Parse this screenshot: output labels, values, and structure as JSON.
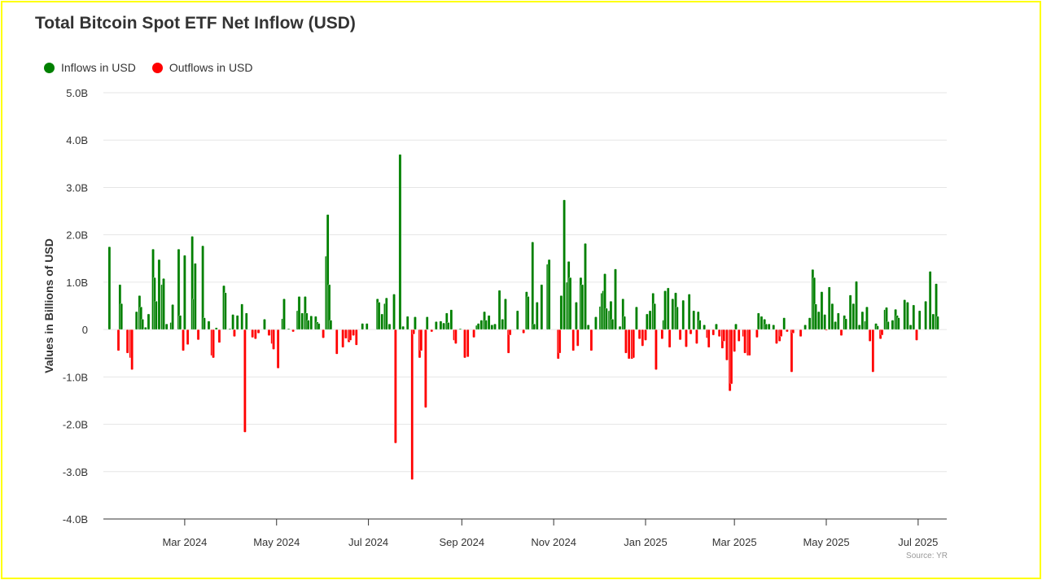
{
  "chart_data": {
    "type": "bar",
    "title": "Total Bitcoin Spot ETF Net Inflow (USD)",
    "xlabel": "",
    "ylabel": "Values in Billions of USD",
    "ylim": [
      -4,
      5
    ],
    "yticks": [
      5,
      4,
      3,
      2,
      1,
      0,
      -1,
      -2,
      -3,
      -4
    ],
    "ytick_labels": [
      "5.0B",
      "4.0B",
      "3.0B",
      "2.0B",
      "1.0B",
      "0",
      "-1.0B",
      "-2.0B",
      "-3.0B",
      "-4.0B"
    ],
    "x_start_date": "2024-01-11",
    "xlim_days": [
      -4,
      556
    ],
    "xticks": [
      {
        "date": "2024-03-01",
        "label": "Mar 2024"
      },
      {
        "date": "2024-05-01",
        "label": "May 2024"
      },
      {
        "date": "2024-07-01",
        "label": "Jul 2024"
      },
      {
        "date": "2024-09-01",
        "label": "Sep 2024"
      },
      {
        "date": "2024-11-01",
        "label": "Nov 2024"
      },
      {
        "date": "2025-01-01",
        "label": "Jan 2025"
      },
      {
        "date": "2025-03-01",
        "label": "Mar 2025"
      },
      {
        "date": "2025-05-01",
        "label": "May 2025"
      },
      {
        "date": "2025-07-01",
        "label": "Jul 2025"
      }
    ],
    "grid": true,
    "legend_position": "top-left",
    "series": [
      {
        "name": "Inflows in USD",
        "color": "#008000"
      },
      {
        "name": "Outflows in USD",
        "color": "#ff0000"
      }
    ],
    "points_days_since_start_value_billions": [
      [
        0,
        1.75
      ],
      [
        6,
        -0.45
      ],
      [
        7,
        0.95
      ],
      [
        8,
        0.55
      ],
      [
        12,
        -0.5
      ],
      [
        14,
        -0.6
      ],
      [
        15,
        -0.85
      ],
      [
        18,
        0.38
      ],
      [
        20,
        0.72
      ],
      [
        21,
        0.48
      ],
      [
        22,
        0.22
      ],
      [
        24,
        0.05
      ],
      [
        26,
        0.33
      ],
      [
        29,
        1.7
      ],
      [
        30,
        1.1
      ],
      [
        31,
        0.6
      ],
      [
        33,
        1.48
      ],
      [
        35,
        0.95
      ],
      [
        36,
        1.08
      ],
      [
        38,
        0.12
      ],
      [
        41,
        0.15
      ],
      [
        42,
        0.53
      ],
      [
        46,
        1.7
      ],
      [
        47,
        0.3
      ],
      [
        49,
        -0.45
      ],
      [
        50,
        1.57
      ],
      [
        52,
        -0.32
      ],
      [
        55,
        1.97
      ],
      [
        56,
        0.65
      ],
      [
        57,
        1.4
      ],
      [
        59,
        -0.22
      ],
      [
        62,
        1.77
      ],
      [
        63,
        0.25
      ],
      [
        66,
        0.18
      ],
      [
        68,
        -0.55
      ],
      [
        69,
        -0.6
      ],
      [
        71,
        0.04
      ],
      [
        73,
        -0.28
      ],
      [
        76,
        0.93
      ],
      [
        77,
        0.78
      ],
      [
        80,
        0.02
      ],
      [
        82,
        0.32
      ],
      [
        83,
        -0.15
      ],
      [
        85,
        0.3
      ],
      [
        88,
        0.54
      ],
      [
        90,
        -2.17
      ],
      [
        91,
        0.35
      ],
      [
        95,
        -0.17
      ],
      [
        97,
        -0.2
      ],
      [
        99,
        -0.08
      ],
      [
        103,
        0.22
      ],
      [
        106,
        -0.13
      ],
      [
        108,
        -0.3
      ],
      [
        109,
        -0.42
      ],
      [
        112,
        -0.82
      ],
      [
        115,
        0.23
      ],
      [
        116,
        0.65
      ],
      [
        119,
        0.02
      ],
      [
        122,
        -0.05
      ],
      [
        125,
        0.4
      ],
      [
        126,
        0.7
      ],
      [
        128,
        0.35
      ],
      [
        130,
        0.7
      ],
      [
        131,
        0.35
      ],
      [
        132,
        0.2
      ],
      [
        134,
        0.29
      ],
      [
        137,
        0.28
      ],
      [
        138,
        0.16
      ],
      [
        139,
        0.13
      ],
      [
        142,
        -0.18
      ],
      [
        144,
        1.55
      ],
      [
        145,
        2.43
      ],
      [
        146,
        0.95
      ],
      [
        147,
        0.2
      ],
      [
        151,
        -0.52
      ],
      [
        155,
        -0.38
      ],
      [
        157,
        -0.19
      ],
      [
        159,
        -0.27
      ],
      [
        160,
        -0.23
      ],
      [
        162,
        -0.13
      ],
      [
        164,
        -0.33
      ],
      [
        168,
        0.13
      ],
      [
        171,
        0.13
      ],
      [
        178,
        0.65
      ],
      [
        179,
        0.58
      ],
      [
        181,
        0.33
      ],
      [
        183,
        0.55
      ],
      [
        184,
        0.67
      ],
      [
        186,
        0.12
      ],
      [
        189,
        0.75
      ],
      [
        190,
        -2.4
      ],
      [
        193,
        3.7
      ],
      [
        195,
        0.07
      ],
      [
        198,
        0.28
      ],
      [
        201,
        -3.17
      ],
      [
        202,
        -0.1
      ],
      [
        203,
        0.27
      ],
      [
        206,
        -0.6
      ],
      [
        207,
        -0.45
      ],
      [
        210,
        -1.65
      ],
      [
        211,
        0.27
      ],
      [
        214,
        -0.05
      ],
      [
        217,
        0.17
      ],
      [
        220,
        0.18
      ],
      [
        222,
        0.14
      ],
      [
        224,
        0.35
      ],
      [
        225,
        0.15
      ],
      [
        227,
        0.42
      ],
      [
        229,
        -0.23
      ],
      [
        230,
        -0.3
      ],
      [
        233,
        0.02
      ],
      [
        236,
        -0.6
      ],
      [
        238,
        -0.58
      ],
      [
        242,
        -0.17
      ],
      [
        244,
        0.09
      ],
      [
        245,
        0.13
      ],
      [
        247,
        0.2
      ],
      [
        249,
        0.38
      ],
      [
        250,
        0.2
      ],
      [
        252,
        0.3
      ],
      [
        254,
        0.1
      ],
      [
        256,
        0.12
      ],
      [
        259,
        0.83
      ],
      [
        261,
        0.22
      ],
      [
        263,
        0.65
      ],
      [
        265,
        -0.5
      ],
      [
        266,
        -0.12
      ],
      [
        271,
        0.4
      ],
      [
        275,
        -0.08
      ],
      [
        277,
        0.8
      ],
      [
        278,
        0.7
      ],
      [
        281,
        1.85
      ],
      [
        282,
        0.12
      ],
      [
        284,
        0.58
      ],
      [
        287,
        0.95
      ],
      [
        291,
        1.38
      ],
      [
        292,
        1.48
      ],
      [
        298,
        -0.62
      ],
      [
        299,
        -0.5
      ],
      [
        300,
        0.72
      ],
      [
        302,
        2.74
      ],
      [
        304,
        1.0
      ],
      [
        305,
        1.44
      ],
      [
        306,
        1.1
      ],
      [
        308,
        -0.45
      ],
      [
        310,
        0.58
      ],
      [
        311,
        -0.35
      ],
      [
        313,
        1.1
      ],
      [
        314,
        0.95
      ],
      [
        316,
        1.82
      ],
      [
        318,
        0.1
      ],
      [
        320,
        -0.45
      ],
      [
        323,
        0.27
      ],
      [
        326,
        0.49
      ],
      [
        327,
        0.77
      ],
      [
        328,
        0.82
      ],
      [
        329,
        1.18
      ],
      [
        330,
        0.45
      ],
      [
        332,
        0.4
      ],
      [
        333,
        0.6
      ],
      [
        334,
        0.22
      ],
      [
        336,
        1.28
      ],
      [
        339,
        0.07
      ],
      [
        341,
        0.65
      ],
      [
        342,
        0.28
      ],
      [
        343,
        -0.5
      ],
      [
        345,
        -0.62
      ],
      [
        347,
        -0.62
      ],
      [
        348,
        -0.6
      ],
      [
        350,
        0.48
      ],
      [
        352,
        -0.2
      ],
      [
        354,
        -0.35
      ],
      [
        356,
        -0.23
      ],
      [
        357,
        0.33
      ],
      [
        359,
        0.4
      ],
      [
        361,
        0.77
      ],
      [
        362,
        0.55
      ],
      [
        363,
        -0.85
      ],
      [
        367,
        -0.2
      ],
      [
        368,
        0.2
      ],
      [
        369,
        0.82
      ],
      [
        371,
        0.88
      ],
      [
        372,
        -0.38
      ],
      [
        374,
        0.65
      ],
      [
        376,
        0.78
      ],
      [
        377,
        0.48
      ],
      [
        379,
        -0.22
      ],
      [
        381,
        0.62
      ],
      [
        383,
        -0.37
      ],
      [
        385,
        0.75
      ],
      [
        386,
        -0.1
      ],
      [
        388,
        0.4
      ],
      [
        390,
        -0.3
      ],
      [
        391,
        0.38
      ],
      [
        392,
        0.2
      ],
      [
        395,
        0.1
      ],
      [
        397,
        -0.18
      ],
      [
        398,
        -0.38
      ],
      [
        401,
        -0.12
      ],
      [
        403,
        0.12
      ],
      [
        405,
        -0.15
      ],
      [
        407,
        -0.4
      ],
      [
        408,
        -0.25
      ],
      [
        410,
        -0.65
      ],
      [
        412,
        -1.3
      ],
      [
        413,
        -1.15
      ],
      [
        415,
        -0.47
      ],
      [
        416,
        0.12
      ],
      [
        418,
        -0.25
      ],
      [
        421,
        -0.15
      ],
      [
        422,
        -0.5
      ],
      [
        424,
        -0.55
      ],
      [
        425,
        -0.55
      ],
      [
        430,
        -0.17
      ],
      [
        431,
        0.35
      ],
      [
        433,
        0.28
      ],
      [
        435,
        0.22
      ],
      [
        436,
        0.12
      ],
      [
        438,
        0.12
      ],
      [
        441,
        0.1
      ],
      [
        443,
        -0.3
      ],
      [
        445,
        -0.25
      ],
      [
        446,
        -0.15
      ],
      [
        448,
        0.25
      ],
      [
        450,
        -0.05
      ],
      [
        453,
        -0.9
      ],
      [
        454,
        -0.08
      ],
      [
        459,
        -0.15
      ],
      [
        462,
        0.1
      ],
      [
        465,
        0.25
      ],
      [
        467,
        1.27
      ],
      [
        468,
        1.1
      ],
      [
        469,
        0.54
      ],
      [
        471,
        0.38
      ],
      [
        473,
        0.8
      ],
      [
        475,
        0.32
      ],
      [
        476,
        -0.02
      ],
      [
        478,
        0.9
      ],
      [
        480,
        0.55
      ],
      [
        482,
        0.17
      ],
      [
        484,
        0.35
      ],
      [
        486,
        -0.13
      ],
      [
        488,
        0.3
      ],
      [
        489,
        0.23
      ],
      [
        492,
        0.73
      ],
      [
        494,
        0.55
      ],
      [
        496,
        1.02
      ],
      [
        498,
        0.1
      ],
      [
        500,
        0.38
      ],
      [
        502,
        0.18
      ],
      [
        503,
        0.48
      ],
      [
        505,
        -0.25
      ],
      [
        507,
        -0.9
      ],
      [
        509,
        0.13
      ],
      [
        510,
        0.08
      ],
      [
        512,
        -0.2
      ],
      [
        513,
        -0.12
      ],
      [
        515,
        0.42
      ],
      [
        516,
        0.47
      ],
      [
        517,
        0.17
      ],
      [
        520,
        0.2
      ],
      [
        522,
        0.43
      ],
      [
        523,
        0.3
      ],
      [
        524,
        0.25
      ],
      [
        528,
        0.63
      ],
      [
        530,
        0.58
      ],
      [
        532,
        0.1
      ],
      [
        534,
        0.52
      ],
      [
        536,
        -0.23
      ],
      [
        538,
        0.4
      ],
      [
        542,
        0.6
      ],
      [
        545,
        1.23
      ],
      [
        547,
        0.33
      ],
      [
        549,
        0.97
      ],
      [
        550,
        0.28
      ]
    ],
    "source": "Source: YR"
  }
}
